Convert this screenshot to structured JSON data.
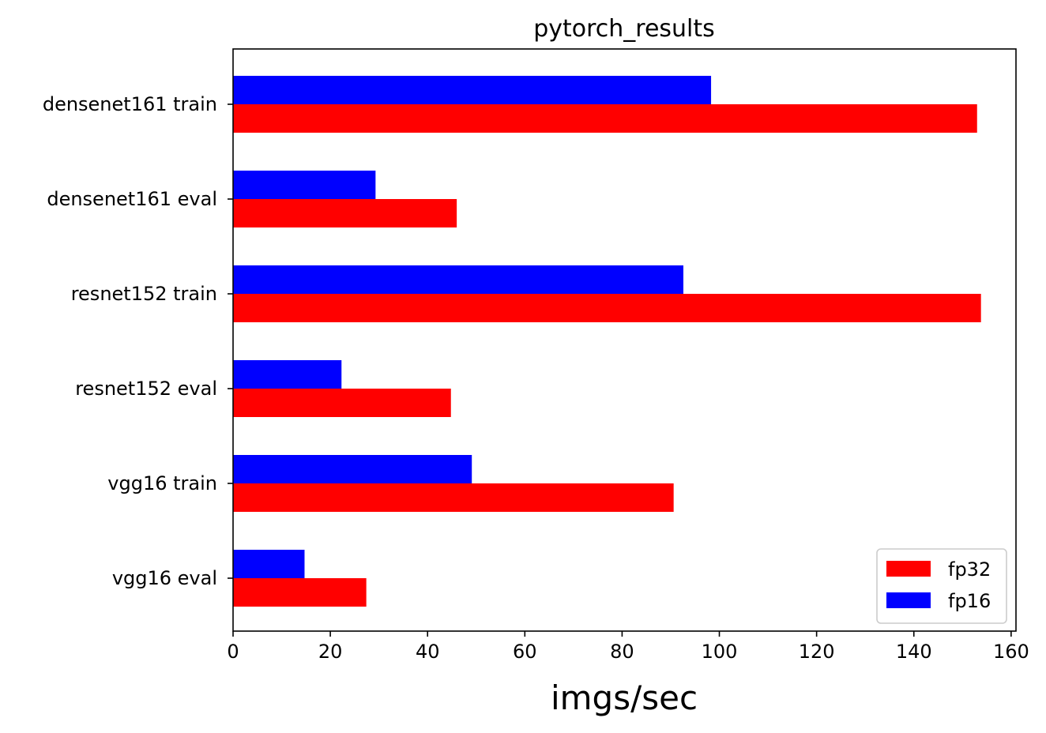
{
  "chart_data": {
    "type": "bar",
    "orientation": "horizontal",
    "title": "pytorch_results",
    "xlabel": "imgs/sec",
    "ylabel": "",
    "categories": [
      "densenet161 train",
      "densenet161 eval",
      "resnet152 train",
      "resnet152 eval",
      "vgg16 train",
      "vgg16 eval"
    ],
    "series": [
      {
        "name": "fp32",
        "color": "#ff0000",
        "values": [
          153.0,
          46.0,
          153.8,
          44.8,
          90.6,
          27.4
        ]
      },
      {
        "name": "fp16",
        "color": "#0000ff",
        "values": [
          98.3,
          29.3,
          92.6,
          22.3,
          49.1,
          14.7
        ]
      }
    ],
    "xlim": [
      0,
      161
    ],
    "xticks": [
      0,
      20,
      40,
      60,
      80,
      100,
      120,
      140,
      160
    ],
    "grid": false,
    "legend": "lower right"
  }
}
